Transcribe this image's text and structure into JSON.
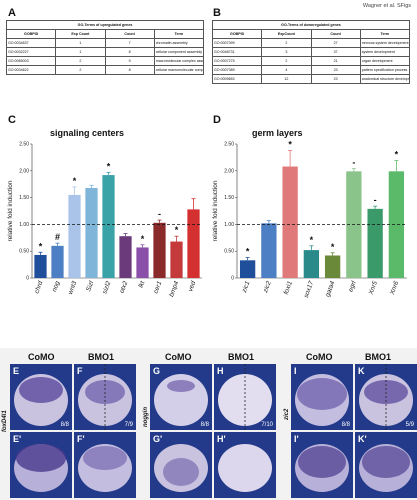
{
  "header": {
    "text": "Wagner et al. SFigs"
  },
  "panels": {
    "A": {
      "label": "A",
      "caption": "GO-Terms of upregulated genes",
      "columns": [
        "GOBPID",
        "Exp Count",
        "Count",
        "Term"
      ],
      "rows": [
        [
          "GO:0034637",
          "1",
          "7",
          "chromatin assembly"
        ],
        [
          "GO:0032227",
          "1",
          "8",
          "cellular component assembly"
        ],
        [
          "GO:0065003",
          "2",
          "9",
          "macromolecular complex assembly"
        ],
        [
          "GO:0034622",
          "2",
          "8",
          "cellular macromolecular complex assembly"
        ]
      ]
    },
    "B": {
      "label": "B",
      "caption": "GO-Terms of downregulated genes",
      "columns": [
        "GOBPID",
        "ExpCount",
        "Count",
        "Term"
      ],
      "rows": [
        [
          "GO:0007399",
          "2",
          "27",
          "nervous system development"
        ],
        [
          "GO:0048731",
          "3",
          "37",
          "system development"
        ],
        [
          "GO:0007275",
          "2",
          "21",
          "organ development"
        ],
        [
          "GO:0007389",
          "4",
          "23",
          "pattern specification process"
        ],
        [
          "GO:0009653",
          "12",
          "23",
          "anatomical structure development"
        ]
      ]
    },
    "C": {
      "label": "C"
    },
    "D": {
      "label": "D"
    },
    "E": {
      "label": "E",
      "count": "8/8"
    },
    "F": {
      "label": "F",
      "count": "7/9"
    },
    "E2": {
      "label": "E'"
    },
    "F2": {
      "label": "F'"
    },
    "G": {
      "label": "G",
      "count": "8/8"
    },
    "H": {
      "label": "H",
      "count": "7/10"
    },
    "G2": {
      "label": "G'"
    },
    "H2": {
      "label": "H'"
    },
    "I": {
      "label": "I",
      "count": "8/8"
    },
    "K": {
      "label": "K",
      "count": "5/9"
    },
    "I2": {
      "label": "I'"
    },
    "K2": {
      "label": "K'"
    }
  },
  "image_row": {
    "col_headers": [
      "CoMO",
      "BMO1",
      "CoMO",
      "BMO1",
      "CoMO",
      "BMO1"
    ],
    "gene_labels": [
      "foxD4l1",
      "noggin",
      "zic2"
    ]
  },
  "chart_data": [
    {
      "type": "bar",
      "title": "signaling centers",
      "ylabel": "relative fold induction",
      "ylim": [
        0,
        2.5
      ],
      "yticks": [
        "0",
        "0.50",
        "1.00",
        "1.50",
        "2.00",
        "2.50"
      ],
      "reference_line": 1.0,
      "categories": [
        "chrd",
        "nog",
        "vnt3",
        "szl",
        "sizzled",
        "otx2",
        "lkt",
        "cer1",
        "bmp4",
        "ved1"
      ],
      "display_labels": [
        "chrd",
        "nog",
        "wnt3",
        "Sizl",
        "sizl2",
        "otx2",
        "lkt",
        "cer1",
        "bmp4",
        "ved"
      ],
      "values": [
        0.43,
        0.6,
        1.55,
        1.68,
        1.92,
        0.78,
        0.57,
        1.03,
        0.68,
        1.28
      ],
      "errors": [
        0.05,
        0.05,
        0.15,
        0.05,
        0.05,
        0.05,
        0.05,
        0.05,
        0.1,
        0.2
      ],
      "markers": [
        "*",
        "#",
        "*",
        "",
        "*",
        "",
        "*",
        "-",
        "*",
        ""
      ],
      "colors": [
        "#1f4e9a",
        "#4d7fc4",
        "#a9c4e8",
        "#7fb5d9",
        "#3aa3a8",
        "#6a3a7a",
        "#8a4fa8",
        "#8a2a2a",
        "#c43a3a",
        "#d43030"
      ]
    },
    {
      "type": "bar",
      "title": "germ layers",
      "ylabel": "relative fold induction",
      "ylim": [
        0,
        2.5
      ],
      "yticks": [
        "0",
        "0.50",
        "1.00",
        "1.50",
        "2.00",
        "2.50"
      ],
      "reference_line": 1.0,
      "categories": [
        "zic1",
        "zic2",
        "foxi1",
        "sox17",
        "gata4",
        "egrl",
        "Xnr5",
        "Xnr6"
      ],
      "values": [
        0.33,
        1.02,
        2.08,
        0.52,
        0.42,
        1.99,
        1.29,
        1.99
      ],
      "errors": [
        0.05,
        0.05,
        0.3,
        0.08,
        0.05,
        0.05,
        0.05,
        0.2
      ],
      "markers": [
        "*",
        "",
        "*",
        "*",
        "*",
        "-",
        "-",
        "*"
      ],
      "colors": [
        "#1f4e9a",
        "#4d7fc4",
        "#e07a7a",
        "#2a8a8a",
        "#6a8a3a",
        "#8ac48a",
        "#3a9a6a",
        "#5aba6a"
      ]
    }
  ]
}
